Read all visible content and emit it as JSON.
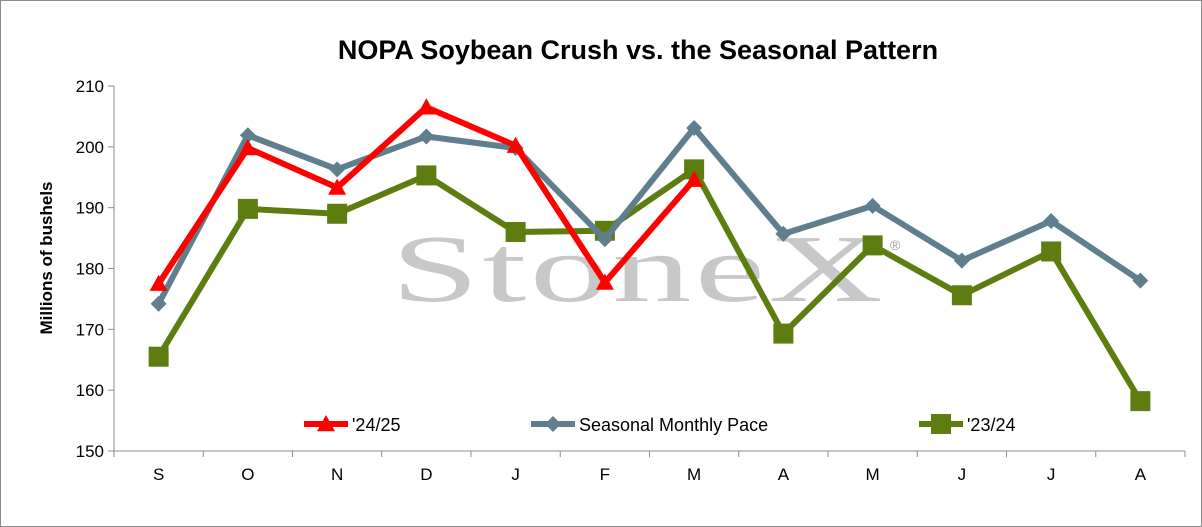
{
  "chart_data": {
    "type": "line",
    "title": "NOPA Soybean Crush vs. the Seasonal Pattern",
    "ylabel": "Millions of  bushels",
    "xlabel": "",
    "categories": [
      "S",
      "O",
      "N",
      "D",
      "J",
      "F",
      "M",
      "A",
      "M",
      "J",
      "J",
      "A"
    ],
    "ylim": [
      150,
      210
    ],
    "yticks": [
      "150",
      "160",
      "170",
      "180",
      "190",
      "200",
      "210"
    ],
    "grid": false,
    "legend_position": "bottom-inside",
    "series": [
      {
        "name": "'24/25",
        "color": "#ff0000",
        "marker": "triangle",
        "values": [
          177.5,
          199.8,
          193.3,
          206.5,
          200.2,
          177.7,
          194.6,
          null,
          null,
          null,
          null,
          null
        ]
      },
      {
        "name": "Seasonal Monthly Pace",
        "color": "#5f7f8f",
        "marker": "diamond",
        "values": [
          174.2,
          201.9,
          196.3,
          201.7,
          199.8,
          184.8,
          203.1,
          185.7,
          190.3,
          181.3,
          187.8,
          178.0
        ]
      },
      {
        "name": "'23/24",
        "color": "#5e7d10",
        "marker": "square",
        "values": [
          165.5,
          189.8,
          189.0,
          195.3,
          186.0,
          186.2,
          196.3,
          169.3,
          183.8,
          175.6,
          182.8,
          158.2
        ]
      }
    ]
  },
  "watermark": {
    "text": "StoneX",
    "registered": "®",
    "icon": "stonex-logo-watermark"
  }
}
